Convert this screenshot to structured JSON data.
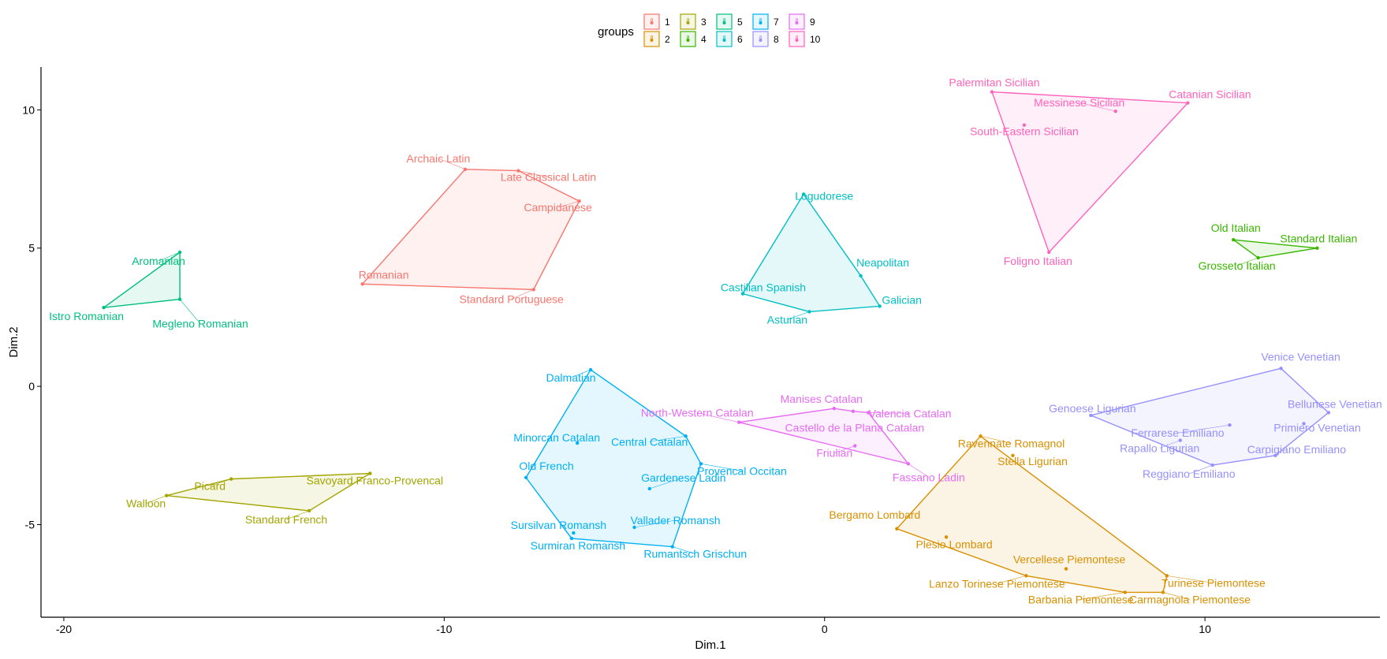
{
  "chart_data": {
    "type": "scatter",
    "xlabel": "Dim.1",
    "ylabel": "Dim.2",
    "xlim": [
      -20.6,
      14.6
    ],
    "ylim": [
      -8.35,
      11.55
    ],
    "xticks": [
      -20,
      -10,
      0,
      10
    ],
    "yticks": [
      -5,
      0,
      5,
      10
    ],
    "xtick_labels": [
      "-20",
      "-10",
      "0",
      "10"
    ],
    "ytick_labels": [
      "-5",
      "0",
      "5",
      "10"
    ],
    "grid": false,
    "legend": {
      "title": "groups",
      "placement": "top",
      "entries": [
        "1",
        "2",
        "3",
        "4",
        "5",
        "6",
        "7",
        "8",
        "9",
        "10"
      ]
    },
    "groups": [
      {
        "id": "1",
        "color": "#F8766D",
        "points": [
          {
            "label": "Archaic Latin",
            "x": -9.45,
            "y": 7.85
          },
          {
            "label": "Late Classical Latin",
            "x": -8.05,
            "y": 7.8
          },
          {
            "label": "Campidanese",
            "x": -6.45,
            "y": 6.7
          },
          {
            "label": "Romanian",
            "x": -12.15,
            "y": 3.7
          },
          {
            "label": "Standard Portuguese",
            "x": -7.65,
            "y": 3.5
          }
        ],
        "hull": [
          "Archaic Latin",
          "Late Classical Latin",
          "Campidanese",
          "Standard Portuguese",
          "Romanian"
        ]
      },
      {
        "id": "2",
        "color": "#D89000",
        "points": [
          {
            "label": "Ravennate Romagnol",
            "x": 4.1,
            "y": -1.8
          },
          {
            "label": "Stella Ligurian",
            "x": 4.95,
            "y": -2.5
          },
          {
            "label": "Bergamo Lombard",
            "x": 1.9,
            "y": -5.15
          },
          {
            "label": "Plesio Lombard",
            "x": 3.2,
            "y": -5.45
          },
          {
            "label": "Vercellese Piemontese",
            "x": 6.35,
            "y": -6.6
          },
          {
            "label": "Lanzo Torinese Piemontese",
            "x": 5.3,
            "y": -6.85
          },
          {
            "label": "Turinese Piemontese",
            "x": 9.0,
            "y": -6.85
          },
          {
            "label": "Barbania Piemontese",
            "x": 7.9,
            "y": -7.45
          },
          {
            "label": "Carmagnola Piemontese",
            "x": 8.9,
            "y": -7.45
          }
        ],
        "hull": [
          "Ravennate Romagnol",
          "Turinese Piemontese",
          "Carmagnola Piemontese",
          "Barbania Piemontese",
          "Lanzo Torinese Piemontese",
          "Bergamo Lombard"
        ]
      },
      {
        "id": "3",
        "color": "#A3A500",
        "points": [
          {
            "label": "Savoyard Franco-Provencal",
            "x": -11.95,
            "y": -3.15
          },
          {
            "label": "Picard",
            "x": -15.6,
            "y": -3.35
          },
          {
            "label": "Walloon",
            "x": -17.3,
            "y": -3.95
          },
          {
            "label": "Standard French",
            "x": -13.55,
            "y": -4.5
          }
        ],
        "hull": [
          "Savoyard Franco-Provencal",
          "Standard French",
          "Walloon",
          "Picard"
        ]
      },
      {
        "id": "4",
        "color": "#39B600",
        "points": [
          {
            "label": "Old Italian",
            "x": 10.75,
            "y": 5.3
          },
          {
            "label": "Standard Italian",
            "x": 12.95,
            "y": 5.0
          },
          {
            "label": "Grosseto Italian",
            "x": 11.4,
            "y": 4.65
          }
        ],
        "hull": [
          "Old Italian",
          "Standard Italian",
          "Grosseto Italian"
        ]
      },
      {
        "id": "5",
        "color": "#00BF7D",
        "points": [
          {
            "label": "Aromanian",
            "x": -16.95,
            "y": 4.85
          },
          {
            "label": "Megleno Romanian",
            "x": -16.95,
            "y": 3.15
          },
          {
            "label": "Istro Romanian",
            "x": -18.95,
            "y": 2.85
          }
        ],
        "hull": [
          "Aromanian",
          "Megleno Romanian",
          "Istro Romanian"
        ]
      },
      {
        "id": "6",
        "color": "#00BFC4",
        "points": [
          {
            "label": "Logudorese",
            "x": -0.55,
            "y": 6.95
          },
          {
            "label": "Neapolitan",
            "x": 0.95,
            "y": 4.0
          },
          {
            "label": "Castilian Spanish",
            "x": -2.15,
            "y": 3.35
          },
          {
            "label": "Galician",
            "x": 1.45,
            "y": 2.9
          },
          {
            "label": "Asturian",
            "x": -0.4,
            "y": 2.7
          }
        ],
        "hull": [
          "Logudorese",
          "Neapolitan",
          "Galician",
          "Asturian",
          "Castilian Spanish"
        ]
      },
      {
        "id": "7",
        "color": "#00B0F6",
        "points": [
          {
            "label": "Dalmatian",
            "x": -6.15,
            "y": 0.6
          },
          {
            "label": "Minorcan Catalan",
            "x": -6.5,
            "y": -2.05
          },
          {
            "label": "Central Catalan",
            "x": -3.65,
            "y": -1.8
          },
          {
            "label": "Provencal Occitan",
            "x": -3.25,
            "y": -2.8
          },
          {
            "label": "Old French",
            "x": -7.85,
            "y": -3.3
          },
          {
            "label": "Gardenese Ladin",
            "x": -4.6,
            "y": -3.7
          },
          {
            "label": "Sursilvan Romansh",
            "x": -6.6,
            "y": -5.3
          },
          {
            "label": "Vallader Romansh",
            "x": -5.0,
            "y": -5.1
          },
          {
            "label": "Surmiran Romansh",
            "x": -6.65,
            "y": -5.5
          },
          {
            "label": "Rumantsch Grischun",
            "x": -4.0,
            "y": -5.8
          }
        ],
        "hull": [
          "Dalmatian",
          "Central Catalan",
          "Provencal Occitan",
          "Rumantsch Grischun",
          "Surmiran Romansh",
          "Old French"
        ]
      },
      {
        "id": "8",
        "color": "#9590FF",
        "points": [
          {
            "label": "Venice Venetian",
            "x": 12.0,
            "y": 0.65
          },
          {
            "label": "Bellunese Venetian",
            "x": 13.25,
            "y": -0.95
          },
          {
            "label": "Genoese Ligurian",
            "x": 7.0,
            "y": -1.05
          },
          {
            "label": "Primiero Venetian",
            "x": 12.6,
            "y": -1.35
          },
          {
            "label": "Ferrarese Emiliano",
            "x": 10.65,
            "y": -1.4
          },
          {
            "label": "Rapallo Ligurian",
            "x": 9.35,
            "y": -1.95
          },
          {
            "label": "Carpigiano Emiliano",
            "x": 11.85,
            "y": -2.5
          },
          {
            "label": "Reggiano Emiliano",
            "x": 10.2,
            "y": -2.85
          }
        ],
        "hull": [
          "Venice Venetian",
          "Bellunese Venetian",
          "Carpigiano Emiliano",
          "Reggiano Emiliano",
          "Genoese Ligurian"
        ]
      },
      {
        "id": "9",
        "color": "#E76BF3",
        "points": [
          {
            "label": "Manises Catalan",
            "x": 0.25,
            "y": -0.8
          },
          {
            "label": "North-Western Catalan",
            "x": -2.25,
            "y": -1.3
          },
          {
            "label": "Castello de la Plana Catalan",
            "x": 0.75,
            "y": -0.9
          },
          {
            "label": "Valencia Catalan",
            "x": 1.15,
            "y": -0.95
          },
          {
            "label": "Friulian",
            "x": 0.8,
            "y": -2.15
          },
          {
            "label": "Fassano Ladin",
            "x": 2.2,
            "y": -2.8
          }
        ],
        "hull": [
          "Manises Catalan",
          "Castello de la Plana Catalan",
          "Valencia Catalan",
          "Fassano Ladin",
          "North-Western Catalan"
        ]
      },
      {
        "id": "10",
        "color": "#FF62BC",
        "points": [
          {
            "label": "Palermitan Sicilian",
            "x": 4.4,
            "y": 10.65
          },
          {
            "label": "Catanian Sicilian",
            "x": 9.55,
            "y": 10.25
          },
          {
            "label": "Messinese Sicilian",
            "x": 7.65,
            "y": 9.95
          },
          {
            "label": "South-Eastern Sicilian",
            "x": 5.25,
            "y": 9.45
          },
          {
            "label": "Foligno Italian",
            "x": 5.9,
            "y": 4.85
          }
        ],
        "hull": [
          "Palermitan Sicilian",
          "Catanian Sicilian",
          "Foligno Italian"
        ]
      }
    ]
  }
}
